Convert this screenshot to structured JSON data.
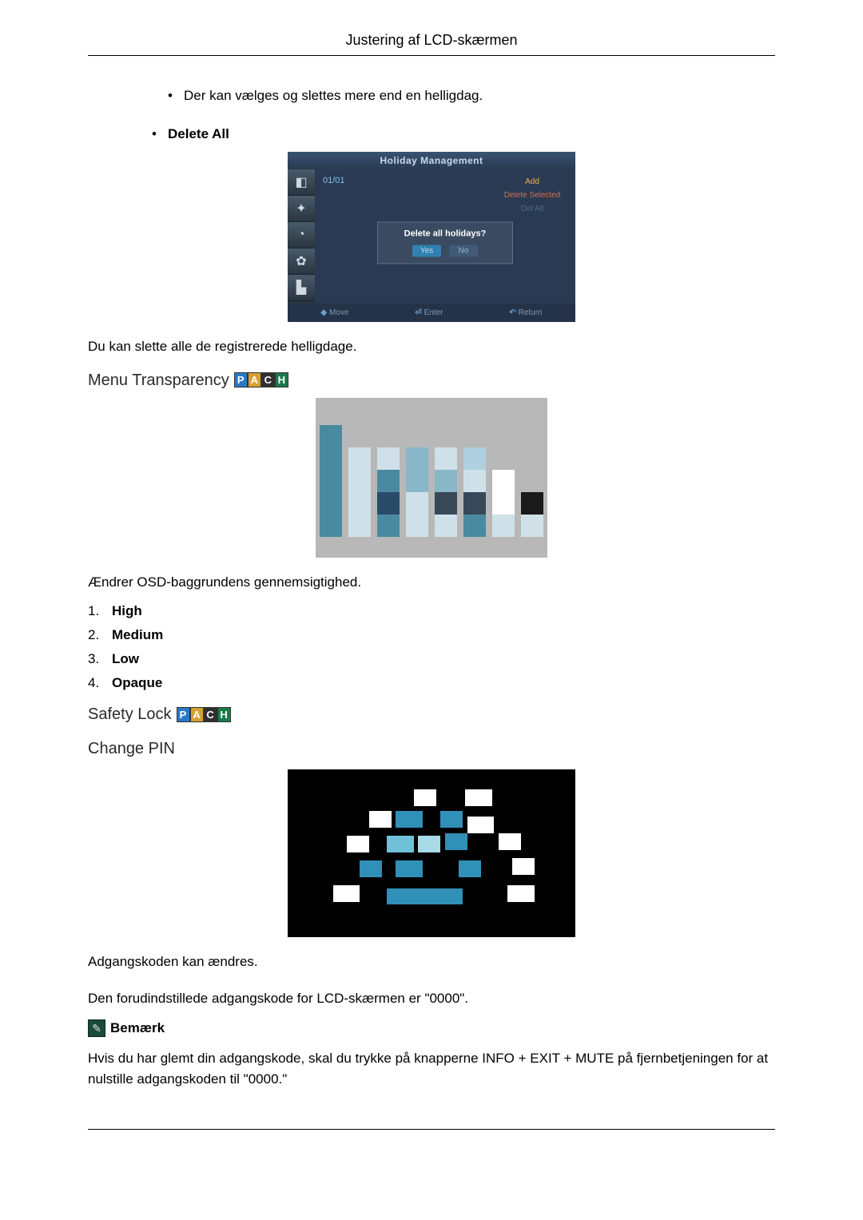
{
  "page_title": "Justering af LCD-skærmen",
  "bullet_holiday_note": "Der kan vælges og slettes mere end en helligdag.",
  "delete_all_label": "Delete All",
  "delete_all_desc": "Du kan slette alle de registrerede helligdage.",
  "osd_holiday": {
    "title": "Holiday Management",
    "date": "01/01",
    "right_add": "Add",
    "right_delete": "Delete Selected",
    "right_all": "Del All",
    "dialog_q": "Delete all holidays?",
    "dialog_yes": "Yes",
    "dialog_no": "No",
    "bottom_move": "Move",
    "bottom_enter": "Enter",
    "bottom_return": "Return"
  },
  "menu_transparency_heading": "Menu Transparency",
  "pach": {
    "p": "P",
    "a": "A",
    "c": "C",
    "h": "H",
    "p_color": "#2878c8",
    "a_color": "#d8a030",
    "c_color": "#303030",
    "h_color": "#1a7a4a"
  },
  "transparency_desc": "Ændrer OSD-baggrundens gennemsigtighed.",
  "transparency_options": [
    "High",
    "Medium",
    "Low",
    "Opaque"
  ],
  "safety_lock_heading": "Safety Lock",
  "change_pin_heading": "Change PIN",
  "pin_desc1": "Adgangskoden kan ændres.",
  "pin_desc2": "Den forudindstillede adgangskode for LCD-skærmen er \"0000\".",
  "note_label": "Bemærk",
  "pin_note": "Hvis du har glemt din adgangskode, skal du trykke på knapperne INFO + EXIT + MUTE på fjernbetjeningen for at nulstille adgangskoden til \"0000.\"",
  "mosaic": {
    "bg": "#b8b8b8",
    "colors": {
      "teal": "#4a8aa0",
      "pale": "#d0e0e8",
      "mid": "#88b8c8",
      "light": "#b0d0e0",
      "navy": "#2a4a6a",
      "dark": "#384858",
      "white": "#ffffff",
      "black": "#1a1a1a"
    }
  },
  "pix": {
    "bg": "#000000",
    "colors": {
      "white": "#ffffff",
      "cyan": "#3090b8",
      "lightcyan": "#70c0d8",
      "palecyan": "#a8dae8"
    }
  }
}
